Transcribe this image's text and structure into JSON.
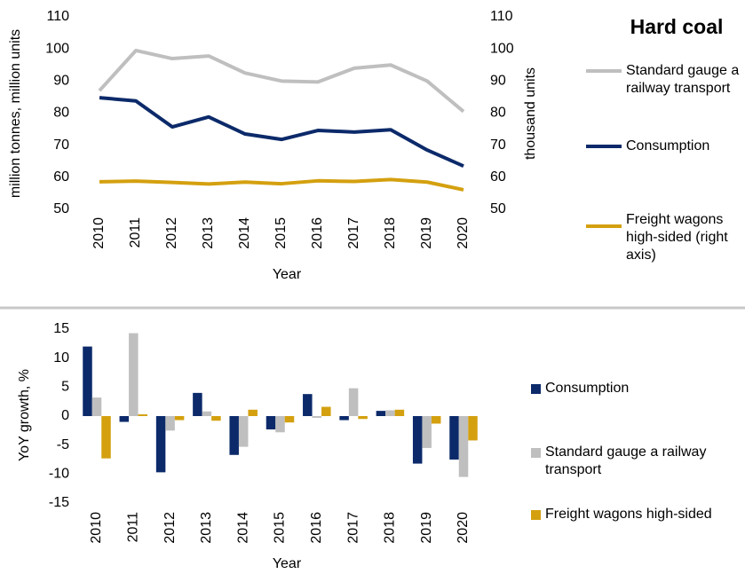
{
  "chart_data": [
    {
      "type": "line",
      "title": "Hard coal",
      "x_label": "Year",
      "y_label": "million tonnes, million units",
      "y2_label": "thousand units",
      "categories": [
        "2010",
        "2011",
        "2012",
        "2013",
        "2014",
        "2015",
        "2016",
        "2017",
        "2018",
        "2019",
        "2020"
      ],
      "ylim": [
        50,
        110
      ],
      "yticks": [
        50,
        60,
        70,
        80,
        90,
        100,
        110
      ],
      "y2lim": [
        50,
        110
      ],
      "y2ticks": [
        50,
        60,
        70,
        80,
        90,
        100,
        110
      ],
      "series": [
        {
          "name": "Standard gauge a railway transport",
          "color": "#bfbfbf",
          "values": [
            87,
            99.5,
            97,
            97.8,
            92.5,
            90,
            89.7,
            94,
            95,
            90,
            80.5
          ]
        },
        {
          "name": "Consumption",
          "color": "#0c2a6a",
          "values": [
            84.8,
            83.8,
            75.7,
            78.8,
            73.5,
            71.8,
            74.6,
            74.1,
            74.8,
            68.5,
            63.5
          ]
        },
        {
          "name": "Freight wagons high-sided (right axis)",
          "color": "#d4a00f",
          "axis": "y2",
          "values": [
            58.6,
            58.8,
            58.4,
            57.9,
            58.5,
            58.0,
            58.9,
            58.7,
            59.3,
            58.5,
            56.1
          ]
        }
      ]
    },
    {
      "type": "bar",
      "x_label": "Year",
      "y_label": "YoY growth, %",
      "categories": [
        "2010",
        "2011",
        "2012",
        "2013",
        "2014",
        "2015",
        "2016",
        "2017",
        "2018",
        "2019",
        "2020"
      ],
      "ylim": [
        -15,
        15
      ],
      "yticks": [
        -15,
        -10,
        -5,
        0,
        5,
        10,
        15
      ],
      "series": [
        {
          "name": "Consumption",
          "color": "#0c2a6a",
          "values": [
            12,
            -1,
            -9.7,
            4,
            -6.7,
            -2.3,
            3.8,
            -0.7,
            0.9,
            -8.2,
            -7.5
          ]
        },
        {
          "name": "Standard gauge a railway transport",
          "color": "#bfbfbf",
          "values": [
            3.2,
            14.3,
            -2.5,
            0.8,
            -5.3,
            -2.8,
            -0.3,
            4.8,
            1,
            -5.5,
            -10.5
          ]
        },
        {
          "name": "Freight wagons high-sided",
          "color": "#d4a00f",
          "values": [
            -7.3,
            0.3,
            -0.7,
            -0.8,
            1.1,
            -1.1,
            1.6,
            -0.5,
            1.1,
            -1.3,
            -4.2
          ]
        }
      ]
    }
  ]
}
